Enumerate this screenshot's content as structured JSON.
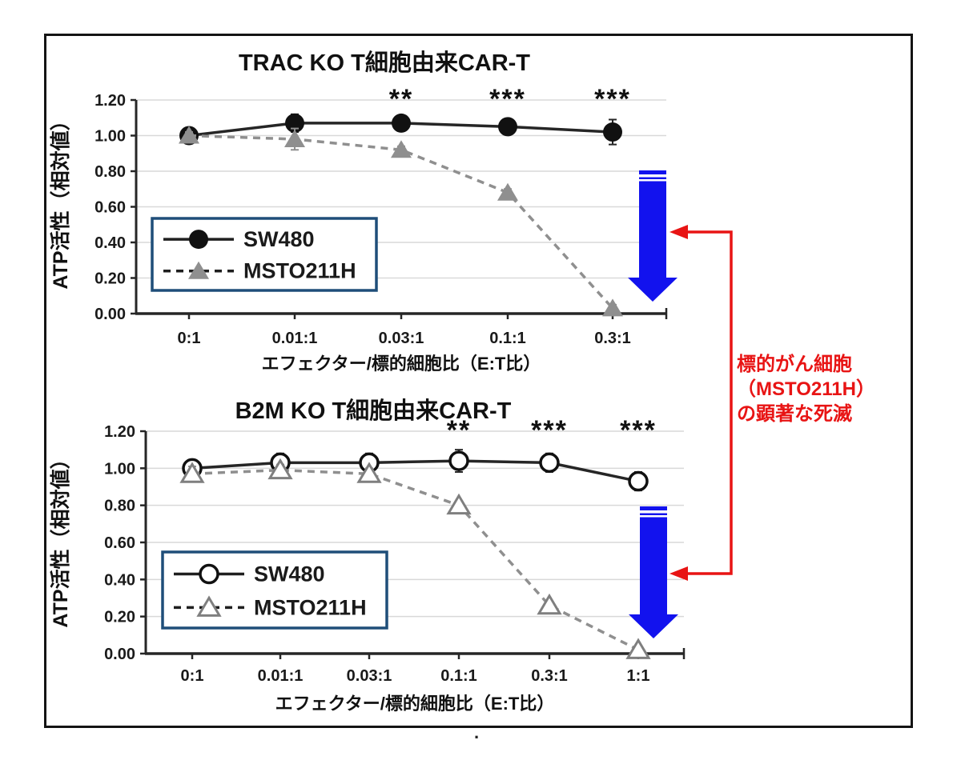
{
  "figure": {
    "footnote_dot": "."
  },
  "annotation": {
    "lines": [
      "標的がん細胞",
      "（MSTO211H）",
      "の顕著な死滅"
    ],
    "color": "#e81414",
    "arrow_color": "#1212ee"
  },
  "chart_data": [
    {
      "type": "line",
      "title": "TRAC KO T細胞由来CAR-T",
      "xlabel": "エフェクター/標的細胞比（E:T比）",
      "ylabel": "ATP活性（相対値）",
      "categories": [
        "0:1",
        "0.01:1",
        "0.03:1",
        "0.1:1",
        "0.3:1"
      ],
      "ylim": [
        0,
        1.2
      ],
      "ytick_labels": [
        "0.00",
        "0.20",
        "0.40",
        "0.60",
        "0.80",
        "1.00",
        "1.20"
      ],
      "grid": true,
      "legend_position": "inside-lower-left",
      "series": [
        {
          "name": "SW480",
          "marker": "filled-circle",
          "line_style": "solid",
          "color": "#262626",
          "values": [
            1.0,
            1.07,
            1.07,
            1.05,
            1.02
          ],
          "error": [
            0.03,
            0.05,
            0.04,
            0.04,
            0.07
          ]
        },
        {
          "name": "MSTO211H",
          "marker": "filled-triangle",
          "line_style": "dashed",
          "color": "#8f8f8f",
          "values": [
            1.0,
            0.98,
            0.92,
            0.68,
            0.03
          ],
          "error": [
            0.02,
            0.06,
            0.02,
            0.02,
            0.02
          ]
        }
      ],
      "significance": [
        {
          "category": "0.03:1",
          "label": "**"
        },
        {
          "category": "0.1:1",
          "label": "***"
        },
        {
          "category": "0.3:1",
          "label": "***"
        }
      ],
      "down_arrow": true
    },
    {
      "type": "line",
      "title": "B2M KO T細胞由来CAR-T",
      "xlabel": "エフェクター/標的細胞比（E:T比）",
      "ylabel": "ATP活性（相対値）",
      "categories": [
        "0:1",
        "0.01:1",
        "0.03:1",
        "0.1:1",
        "0.3:1",
        "1:1"
      ],
      "ylim": [
        0,
        1.2
      ],
      "ytick_labels": [
        "0.00",
        "0.20",
        "0.40",
        "0.60",
        "0.80",
        "1.00",
        "1.20"
      ],
      "grid": true,
      "legend_position": "inside-lower-left",
      "series": [
        {
          "name": "SW480",
          "marker": "open-circle",
          "line_style": "solid",
          "color": "#262626",
          "values": [
            1.0,
            1.03,
            1.03,
            1.04,
            1.03,
            0.93
          ],
          "error": [
            0.04,
            0.05,
            0.05,
            0.06,
            0.05,
            0.05
          ]
        },
        {
          "name": "MSTO211H",
          "marker": "open-triangle",
          "line_style": "dashed",
          "color": "#8f8f8f",
          "values": [
            0.97,
            0.99,
            0.97,
            0.8,
            0.26,
            0.02
          ],
          "error": [
            0.04,
            0.03,
            0.03,
            0.02,
            0.02,
            0.02
          ]
        }
      ],
      "significance": [
        {
          "category": "0.1:1",
          "label": "**"
        },
        {
          "category": "0.3:1",
          "label": "***"
        },
        {
          "category": "1:1",
          "label": "***"
        }
      ],
      "down_arrow": true
    }
  ]
}
